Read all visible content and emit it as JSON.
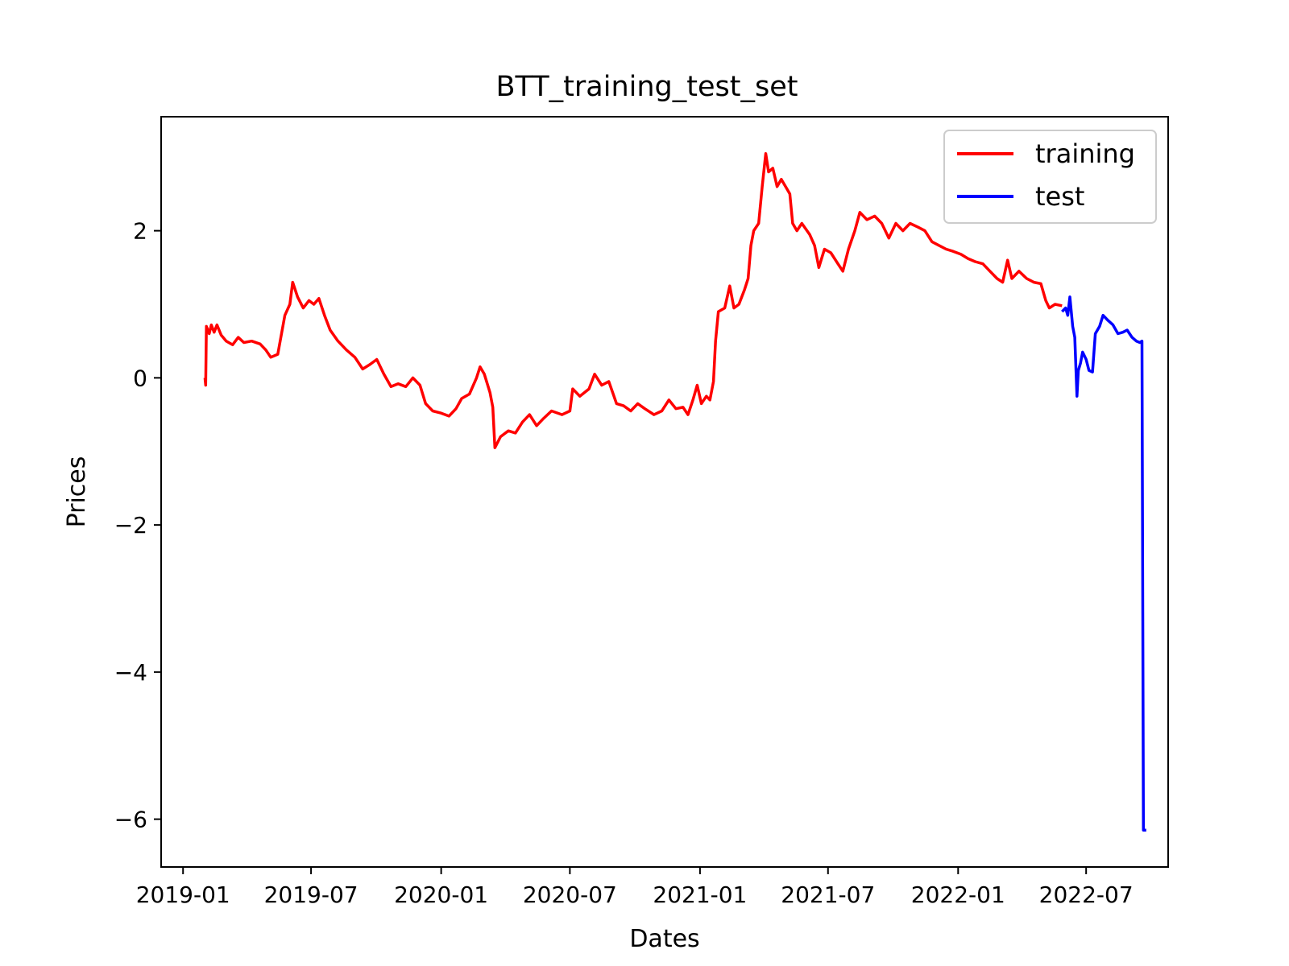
{
  "chart_data": {
    "type": "line",
    "title": "BTT_training_test_set",
    "xlabel": "Dates",
    "ylabel": "Prices",
    "xlim": [
      "2018-12-01",
      "2022-10-25"
    ],
    "ylim": [
      -6.65,
      3.55
    ],
    "x_ticks": [
      "2019-01",
      "2019-07",
      "2020-01",
      "2020-07",
      "2021-01",
      "2021-07",
      "2022-01",
      "2022-07"
    ],
    "y_ticks": [
      2,
      0,
      -2,
      -4,
      -6
    ],
    "y_tick_labels": [
      "2",
      "0",
      "−2",
      "−4",
      "−6"
    ],
    "grid": false,
    "legend": "top-right",
    "series": [
      {
        "name": "training",
        "color": "#ff0000",
        "points": [
          [
            "2019-02-01",
            0.0
          ],
          [
            "2019-02-02",
            -0.1
          ],
          [
            "2019-02-03",
            0.7
          ],
          [
            "2019-02-07",
            0.6
          ],
          [
            "2019-02-10",
            0.72
          ],
          [
            "2019-02-14",
            0.62
          ],
          [
            "2019-02-18",
            0.72
          ],
          [
            "2019-02-24",
            0.58
          ],
          [
            "2019-03-03",
            0.5
          ],
          [
            "2019-03-12",
            0.45
          ],
          [
            "2019-03-20",
            0.55
          ],
          [
            "2019-03-28",
            0.48
          ],
          [
            "2019-04-08",
            0.5
          ],
          [
            "2019-04-20",
            0.46
          ],
          [
            "2019-04-28",
            0.38
          ],
          [
            "2019-05-05",
            0.28
          ],
          [
            "2019-05-15",
            0.32
          ],
          [
            "2019-05-25",
            0.85
          ],
          [
            "2019-06-01",
            1.0
          ],
          [
            "2019-06-05",
            1.3
          ],
          [
            "2019-06-12",
            1.1
          ],
          [
            "2019-06-20",
            0.95
          ],
          [
            "2019-06-28",
            1.05
          ],
          [
            "2019-07-05",
            1.0
          ],
          [
            "2019-07-12",
            1.08
          ],
          [
            "2019-07-20",
            0.85
          ],
          [
            "2019-07-28",
            0.65
          ],
          [
            "2019-08-08",
            0.5
          ],
          [
            "2019-08-20",
            0.38
          ],
          [
            "2019-09-01",
            0.28
          ],
          [
            "2019-09-12",
            0.12
          ],
          [
            "2019-09-22",
            0.18
          ],
          [
            "2019-10-02",
            0.25
          ],
          [
            "2019-10-12",
            0.05
          ],
          [
            "2019-10-22",
            -0.12
          ],
          [
            "2019-11-01",
            -0.08
          ],
          [
            "2019-11-12",
            -0.12
          ],
          [
            "2019-11-22",
            0.0
          ],
          [
            "2019-12-02",
            -0.1
          ],
          [
            "2019-12-10",
            -0.35
          ],
          [
            "2019-12-20",
            -0.45
          ],
          [
            "2020-01-01",
            -0.48
          ],
          [
            "2020-01-12",
            -0.52
          ],
          [
            "2020-01-22",
            -0.42
          ],
          [
            "2020-01-30",
            -0.28
          ],
          [
            "2020-02-10",
            -0.22
          ],
          [
            "2020-02-20",
            0.0
          ],
          [
            "2020-02-25",
            0.15
          ],
          [
            "2020-03-02",
            0.05
          ],
          [
            "2020-03-10",
            -0.2
          ],
          [
            "2020-03-14",
            -0.4
          ],
          [
            "2020-03-17",
            -0.95
          ],
          [
            "2020-03-25",
            -0.8
          ],
          [
            "2020-04-05",
            -0.72
          ],
          [
            "2020-04-15",
            -0.75
          ],
          [
            "2020-04-25",
            -0.6
          ],
          [
            "2020-05-05",
            -0.5
          ],
          [
            "2020-05-15",
            -0.65
          ],
          [
            "2020-05-25",
            -0.55
          ],
          [
            "2020-06-05",
            -0.45
          ],
          [
            "2020-06-20",
            -0.5
          ],
          [
            "2020-07-01",
            -0.45
          ],
          [
            "2020-07-05",
            -0.15
          ],
          [
            "2020-07-15",
            -0.25
          ],
          [
            "2020-07-28",
            -0.15
          ],
          [
            "2020-08-05",
            0.05
          ],
          [
            "2020-08-15",
            -0.1
          ],
          [
            "2020-08-25",
            -0.05
          ],
          [
            "2020-09-05",
            -0.35
          ],
          [
            "2020-09-15",
            -0.38
          ],
          [
            "2020-09-25",
            -0.45
          ],
          [
            "2020-10-05",
            -0.35
          ],
          [
            "2020-10-15",
            -0.42
          ],
          [
            "2020-10-28",
            -0.5
          ],
          [
            "2020-11-08",
            -0.45
          ],
          [
            "2020-11-18",
            -0.3
          ],
          [
            "2020-11-28",
            -0.42
          ],
          [
            "2020-12-08",
            -0.4
          ],
          [
            "2020-12-15",
            -0.5
          ],
          [
            "2020-12-22",
            -0.3
          ],
          [
            "2020-12-28",
            -0.1
          ],
          [
            "2021-01-03",
            -0.35
          ],
          [
            "2021-01-10",
            -0.25
          ],
          [
            "2021-01-15",
            -0.3
          ],
          [
            "2021-01-20",
            -0.05
          ],
          [
            "2021-01-23",
            0.5
          ],
          [
            "2021-01-27",
            0.9
          ],
          [
            "2021-02-05",
            0.95
          ],
          [
            "2021-02-12",
            1.25
          ],
          [
            "2021-02-18",
            0.95
          ],
          [
            "2021-02-25",
            1.0
          ],
          [
            "2021-03-05",
            1.2
          ],
          [
            "2021-03-10",
            1.35
          ],
          [
            "2021-03-14",
            1.8
          ],
          [
            "2021-03-18",
            2.0
          ],
          [
            "2021-03-25",
            2.1
          ],
          [
            "2021-03-30",
            2.6
          ],
          [
            "2021-04-04",
            3.05
          ],
          [
            "2021-04-08",
            2.8
          ],
          [
            "2021-04-14",
            2.85
          ],
          [
            "2021-04-20",
            2.6
          ],
          [
            "2021-04-26",
            2.7
          ],
          [
            "2021-05-02",
            2.6
          ],
          [
            "2021-05-08",
            2.5
          ],
          [
            "2021-05-12",
            2.1
          ],
          [
            "2021-05-18",
            2.0
          ],
          [
            "2021-05-25",
            2.1
          ],
          [
            "2021-06-05",
            1.95
          ],
          [
            "2021-06-12",
            1.8
          ],
          [
            "2021-06-18",
            1.5
          ],
          [
            "2021-06-26",
            1.75
          ],
          [
            "2021-07-05",
            1.7
          ],
          [
            "2021-07-15",
            1.55
          ],
          [
            "2021-07-22",
            1.45
          ],
          [
            "2021-07-30",
            1.75
          ],
          [
            "2021-08-08",
            2.0
          ],
          [
            "2021-08-15",
            2.25
          ],
          [
            "2021-08-25",
            2.15
          ],
          [
            "2021-09-05",
            2.2
          ],
          [
            "2021-09-15",
            2.1
          ],
          [
            "2021-09-25",
            1.9
          ],
          [
            "2021-10-05",
            2.1
          ],
          [
            "2021-10-15",
            2.0
          ],
          [
            "2021-10-25",
            2.1
          ],
          [
            "2021-11-05",
            2.05
          ],
          [
            "2021-11-15",
            2.0
          ],
          [
            "2021-11-25",
            1.85
          ],
          [
            "2021-12-05",
            1.8
          ],
          [
            "2021-12-15",
            1.75
          ],
          [
            "2021-12-25",
            1.72
          ],
          [
            "2022-01-05",
            1.68
          ],
          [
            "2022-01-15",
            1.62
          ],
          [
            "2022-01-25",
            1.58
          ],
          [
            "2022-02-05",
            1.55
          ],
          [
            "2022-02-15",
            1.45
          ],
          [
            "2022-02-25",
            1.35
          ],
          [
            "2022-03-05",
            1.3
          ],
          [
            "2022-03-12",
            1.6
          ],
          [
            "2022-03-18",
            1.35
          ],
          [
            "2022-03-28",
            1.45
          ],
          [
            "2022-04-08",
            1.35
          ],
          [
            "2022-04-18",
            1.3
          ],
          [
            "2022-04-28",
            1.28
          ],
          [
            "2022-05-05",
            1.05
          ],
          [
            "2022-05-10",
            0.95
          ],
          [
            "2022-05-18",
            1.0
          ],
          [
            "2022-05-28",
            0.98
          ]
        ]
      },
      {
        "name": "test",
        "color": "#0000ff",
        "points": [
          [
            "2022-05-28",
            0.9
          ],
          [
            "2022-06-02",
            0.95
          ],
          [
            "2022-06-05",
            0.85
          ],
          [
            "2022-06-08",
            1.1
          ],
          [
            "2022-06-12",
            0.7
          ],
          [
            "2022-06-15",
            0.55
          ],
          [
            "2022-06-18",
            -0.25
          ],
          [
            "2022-06-20",
            0.1
          ],
          [
            "2022-06-23",
            0.2
          ],
          [
            "2022-06-26",
            0.35
          ],
          [
            "2022-07-01",
            0.25
          ],
          [
            "2022-07-05",
            0.1
          ],
          [
            "2022-07-10",
            0.08
          ],
          [
            "2022-07-14",
            0.6
          ],
          [
            "2022-07-20",
            0.7
          ],
          [
            "2022-07-25",
            0.85
          ],
          [
            "2022-08-01",
            0.78
          ],
          [
            "2022-08-08",
            0.72
          ],
          [
            "2022-08-15",
            0.6
          ],
          [
            "2022-08-22",
            0.62
          ],
          [
            "2022-08-28",
            0.65
          ],
          [
            "2022-09-04",
            0.55
          ],
          [
            "2022-09-10",
            0.5
          ],
          [
            "2022-09-15",
            0.48
          ],
          [
            "2022-09-18",
            0.5
          ],
          [
            "2022-09-20",
            -6.15
          ],
          [
            "2022-09-24",
            -6.15
          ]
        ]
      }
    ]
  }
}
